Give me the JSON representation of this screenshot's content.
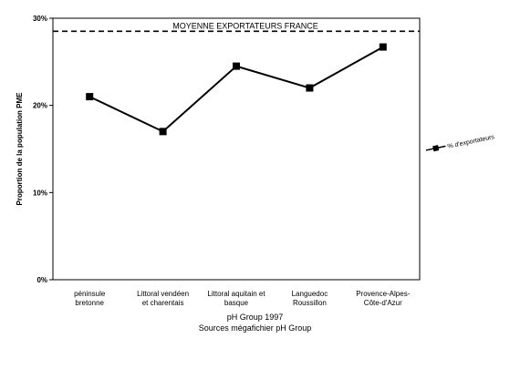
{
  "chart_data": {
    "type": "line",
    "categories": [
      [
        "péninsule",
        "bretonne"
      ],
      [
        "Littoral  vendéen",
        "et charentais"
      ],
      [
        "Littoral aquitain et",
        "basque"
      ],
      [
        "Languedoc",
        "Roussillon"
      ],
      [
        "Provence-Alpes-",
        "Côte-d'Azur"
      ]
    ],
    "series": [
      {
        "name": "% d'exportateurs",
        "values": [
          21,
          17,
          24.5,
          22,
          26.7
        ]
      }
    ],
    "reference_line": {
      "label": "MOYENNE EXPORTATEURS FRANCE",
      "value": 28.5
    },
    "ylabel": "Proportion de la population PME",
    "ylim": [
      0,
      30
    ],
    "yticks": [
      {
        "value": 0,
        "label": "0%"
      },
      {
        "value": 10,
        "label": "10%"
      },
      {
        "value": 20,
        "label": "20%"
      },
      {
        "value": 30,
        "label": "30%"
      }
    ],
    "legend_position": "right",
    "grid": false
  },
  "source_lines": [
    "pH Group 1997",
    "Sources  mégafichier pH Group"
  ]
}
